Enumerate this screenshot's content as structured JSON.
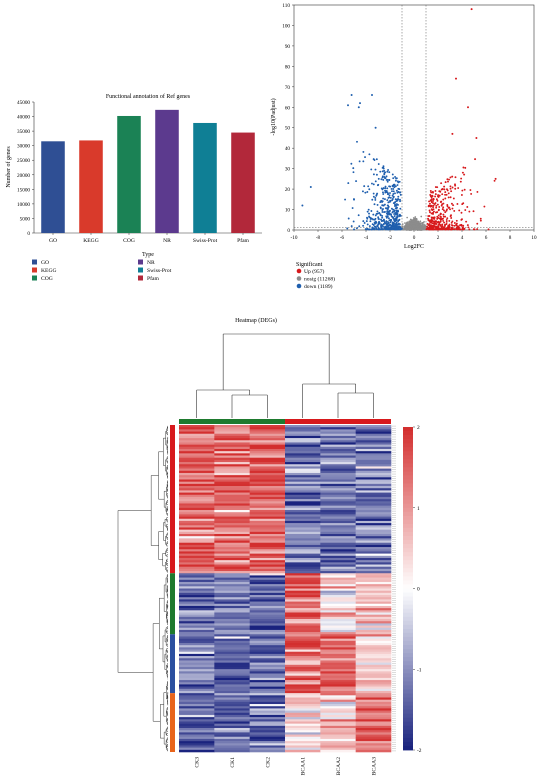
{
  "bar_legend": [
    {
      "label": "GO",
      "color": "#2f4f94"
    },
    {
      "label": "KEGG",
      "color": "#d93a2b"
    },
    {
      "label": "COG",
      "color": "#1b8255"
    },
    {
      "label": "NR",
      "color": "#5c3a8e"
    },
    {
      "label": "Swiss-Prot",
      "color": "#0f7f95"
    },
    {
      "label": "Pfam",
      "color": "#b2283a"
    }
  ],
  "volcano_legend": {
    "title": "Significant",
    "items": [
      {
        "label": "Up (957)",
        "color": "#d7191c"
      },
      {
        "label": "nosig (11268)",
        "color": "#8c8c8c"
      },
      {
        "label": "down (1189)",
        "color": "#1f5fae"
      }
    ]
  },
  "chart_data": [
    {
      "type": "bar",
      "title": "Functional annotation of Ref genes",
      "xlabel": "Type",
      "ylabel": "Number of genes",
      "categories": [
        "GO",
        "KEGG",
        "COG",
        "NR",
        "Swiss-Prot",
        "Pfam"
      ],
      "values": [
        31500,
        31800,
        40200,
        42300,
        37800,
        34500
      ],
      "colors": [
        "#2f4f94",
        "#d93a2b",
        "#1b8255",
        "#5c3a8e",
        "#0f7f95",
        "#b2283a"
      ],
      "ylim": [
        0,
        45000
      ],
      "yticks": [
        "0",
        "5000",
        "10000",
        "15000",
        "20000",
        "25000",
        "30000",
        "35000",
        "40000",
        "45000"
      ],
      "grid": false
    },
    {
      "type": "scatter",
      "title": "",
      "xlabel": "Log2FC",
      "ylabel": "-log10(Padjust)",
      "xlim": [
        -10,
        10
      ],
      "ylim": [
        0,
        110
      ],
      "xticks": [
        "-10",
        "-8",
        "-6",
        "-4",
        "-2",
        "0",
        "2",
        "4",
        "6",
        "8",
        "10"
      ],
      "yticks": [
        "0",
        "10",
        "20",
        "30",
        "40",
        "50",
        "60",
        "70",
        "80",
        "90",
        "100",
        "110"
      ],
      "fc_threshold": [
        -1,
        1
      ],
      "series": [
        {
          "name": "Up (957)",
          "count": 957
        },
        {
          "name": "nosig (11268)",
          "count": 11268
        },
        {
          "name": "down (1189)",
          "count": 1189
        }
      ],
      "notable_points": [
        {
          "x": 4.8,
          "y": 108
        },
        {
          "x": 3.5,
          "y": 74
        },
        {
          "x": 4.5,
          "y": 60
        },
        {
          "x": 3.2,
          "y": 47
        },
        {
          "x": 5.2,
          "y": 45
        },
        {
          "x": 6.8,
          "y": 25
        },
        {
          "x": -5.2,
          "y": 66
        },
        {
          "x": -3.5,
          "y": 66
        },
        {
          "x": -5.5,
          "y": 61
        },
        {
          "x": -4.6,
          "y": 60
        },
        {
          "x": -4.5,
          "y": 62
        },
        {
          "x": -3.2,
          "y": 50
        },
        {
          "x": -8.6,
          "y": 21
        },
        {
          "x": -9.3,
          "y": 12
        }
      ]
    },
    {
      "type": "heatmap",
      "title": "Heatmap (DEGs)",
      "columns": [
        "CK3",
        "CK1",
        "CK2",
        "BCAA1",
        "BCAA2",
        "BCAA3"
      ],
      "column_groups": [
        {
          "name": "CK",
          "color": "#1e7a2e"
        },
        {
          "name": "BCAA",
          "color": "#d7191c"
        }
      ],
      "row_clusters": [
        {
          "color": "#d7191c",
          "pattern": [
            "high",
            "high",
            "high",
            "low",
            "low",
            "low"
          ]
        },
        {
          "color": "#1e7a2e",
          "pattern": [
            "low",
            "low",
            "low",
            "high",
            "mid",
            "mid"
          ]
        },
        {
          "color": "#2b4fa0",
          "pattern": [
            "low",
            "low",
            "low",
            "high",
            "high",
            "mid"
          ]
        },
        {
          "color": "#e8641b",
          "pattern": [
            "low",
            "low",
            "low",
            "mid",
            "mid",
            "high"
          ]
        }
      ],
      "colorbar": {
        "min": -2,
        "max": 2,
        "ticks": [
          "2",
          "1",
          "0",
          "-1",
          "-2"
        ],
        "low": "#1a237e",
        "mid": "#ffffff",
        "high": "#d32f2f"
      }
    }
  ]
}
